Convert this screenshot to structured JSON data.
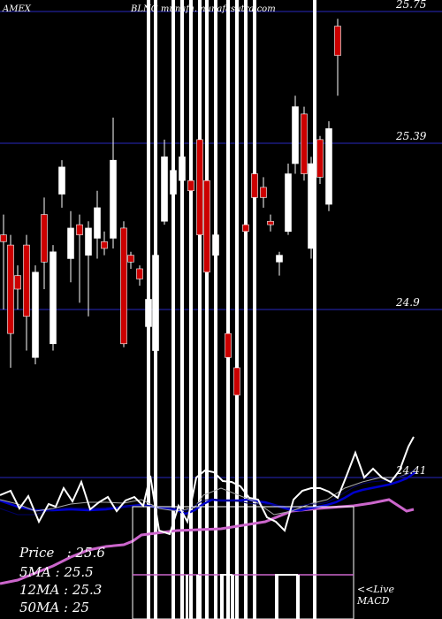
{
  "header": {
    "exchange": "AMEX",
    "symbol_site": "BLNG munafa.munafasutra.com"
  },
  "info": {
    "price": "Price   : 25.6",
    "ma5": "5MA : 25.5",
    "ma12": "12MA : 25.3",
    "ma50": "50MA : 25"
  },
  "live": {
    "line1": "<<Live",
    "line2": "MACD"
  },
  "colors": {
    "up": "#ffffff",
    "down": "#cc0000",
    "grid": "#1a1a80",
    "ma_short": "#0000cc",
    "ma_long": "#cc66cc",
    "macd": "#ffffff"
  },
  "chart_data": {
    "type": "candlestick",
    "y_ticks": [
      25.75,
      25.39,
      24.9,
      24.41
    ],
    "y_tick_labels": [
      "25.75",
      "25.39",
      "24.9",
      "24.41"
    ],
    "price_range": [
      24.41,
      25.75
    ],
    "candles": [
      {
        "x": 4,
        "o": 25.12,
        "c": 25.1,
        "h": 25.18,
        "l": 24.9
      },
      {
        "x": 12,
        "o": 25.09,
        "c": 24.83,
        "h": 25.12,
        "l": 24.73
      },
      {
        "x": 20,
        "o": 25.0,
        "c": 24.96,
        "h": 25.03,
        "l": 24.9
      },
      {
        "x": 30,
        "o": 25.09,
        "c": 24.88,
        "h": 25.12,
        "l": 24.78
      },
      {
        "x": 40,
        "o": 24.76,
        "c": 25.01,
        "h": 25.03,
        "l": 24.74
      },
      {
        "x": 50,
        "o": 25.18,
        "c": 25.04,
        "h": 25.23,
        "l": 24.96
      },
      {
        "x": 60,
        "o": 24.8,
        "c": 25.07,
        "h": 25.09,
        "l": 24.78
      },
      {
        "x": 70,
        "o": 25.24,
        "c": 25.32,
        "h": 25.34,
        "l": 25.2
      },
      {
        "x": 80,
        "o": 25.05,
        "c": 25.14,
        "h": 25.19,
        "l": 24.98
      },
      {
        "x": 90,
        "o": 25.15,
        "c": 25.12,
        "h": 25.18,
        "l": 24.92
      },
      {
        "x": 100,
        "o": 25.06,
        "c": 25.14,
        "h": 25.16,
        "l": 24.88
      },
      {
        "x": 110,
        "o": 25.11,
        "c": 25.2,
        "h": 25.25,
        "l": 25.05
      },
      {
        "x": 118,
        "o": 25.1,
        "c": 25.08,
        "h": 25.13,
        "l": 25.06
      },
      {
        "x": 128,
        "o": 25.11,
        "c": 25.34,
        "h": 25.46,
        "l": 25.08
      },
      {
        "x": 140,
        "o": 25.14,
        "c": 24.8,
        "h": 25.16,
        "l": 24.79
      },
      {
        "x": 148,
        "o": 25.06,
        "c": 25.04,
        "h": 25.07,
        "l": 25.02
      },
      {
        "x": 158,
        "o": 25.02,
        "c": 24.99,
        "h": 25.03,
        "l": 24.97
      },
      {
        "x": 168,
        "o": 24.85,
        "c": 24.93,
        "h": 24.98,
        "l": 24.8
      },
      {
        "x": 176,
        "o": 24.78,
        "c": 25.06,
        "h": 25.08,
        "l": 24.75
      },
      {
        "x": 186,
        "o": 25.16,
        "c": 25.35,
        "h": 25.4,
        "l": 25.15
      },
      {
        "x": 196,
        "o": 25.24,
        "c": 25.31,
        "h": 25.35,
        "l": 25.2
      },
      {
        "x": 206,
        "o": 25.28,
        "c": 25.35,
        "h": 25.38,
        "l": 25.1
      },
      {
        "x": 216,
        "o": 25.28,
        "c": 25.25,
        "h": 25.35,
        "l": 25.1
      },
      {
        "x": 226,
        "o": 25.4,
        "c": 25.12,
        "h": 25.42,
        "l": 25.0
      },
      {
        "x": 234,
        "o": 25.28,
        "c": 25.01,
        "h": 25.33,
        "l": 24.95
      },
      {
        "x": 244,
        "o": 25.06,
        "c": 25.12,
        "h": 25.15,
        "l": 25.0
      },
      {
        "x": 258,
        "o": 24.83,
        "c": 24.76,
        "h": 24.88,
        "l": 24.72
      },
      {
        "x": 268,
        "o": 24.73,
        "c": 24.65,
        "h": 24.74,
        "l": 24.62
      },
      {
        "x": 278,
        "o": 25.15,
        "c": 25.13,
        "h": 25.2,
        "l": 24.9
      },
      {
        "x": 288,
        "o": 25.3,
        "c": 25.23,
        "h": 25.34,
        "l": 25.1
      },
      {
        "x": 298,
        "o": 25.26,
        "c": 25.23,
        "h": 25.29,
        "l": 25.2
      },
      {
        "x": 306,
        "o": 25.16,
        "c": 25.15,
        "h": 25.18,
        "l": 25.13
      },
      {
        "x": 316,
        "o": 25.04,
        "c": 25.06,
        "h": 25.07,
        "l": 25.0
      },
      {
        "x": 326,
        "o": 25.13,
        "c": 25.3,
        "h": 25.33,
        "l": 25.12
      },
      {
        "x": 334,
        "o": 25.33,
        "c": 25.49,
        "h": 25.52,
        "l": 25.3
      },
      {
        "x": 344,
        "o": 25.47,
        "c": 25.3,
        "h": 25.49,
        "l": 25.28
      },
      {
        "x": 352,
        "o": 25.08,
        "c": 25.33,
        "h": 25.35,
        "l": 25.05
      },
      {
        "x": 362,
        "o": 25.4,
        "c": 25.29,
        "h": 25.41,
        "l": 25.27
      },
      {
        "x": 372,
        "o": 25.21,
        "c": 25.43,
        "h": 25.45,
        "l": 25.19
      },
      {
        "x": 382,
        "o": 25.71,
        "c": 25.63,
        "h": 25.73,
        "l": 25.52
      }
    ],
    "volume_spikes": [
      168,
      176,
      196,
      206,
      216,
      226,
      234,
      244,
      258,
      268,
      278,
      288,
      356
    ],
    "ma_fast": [
      [
        0,
        575
      ],
      [
        20,
        582
      ],
      [
        40,
        582
      ],
      [
        60,
        576
      ],
      [
        80,
        574
      ],
      [
        100,
        575
      ],
      [
        120,
        574
      ],
      [
        140,
        573
      ],
      [
        160,
        572
      ],
      [
        180,
        573
      ],
      [
        200,
        575
      ],
      [
        210,
        578
      ],
      [
        220,
        572
      ],
      [
        230,
        566
      ],
      [
        240,
        564
      ],
      [
        250,
        566
      ],
      [
        260,
        566
      ],
      [
        270,
        567
      ],
      [
        280,
        569
      ],
      [
        290,
        570
      ],
      [
        300,
        570
      ],
      [
        310,
        571
      ],
      [
        320,
        572
      ],
      [
        330,
        575
      ],
      [
        340,
        572
      ],
      [
        350,
        570
      ],
      [
        360,
        570
      ],
      [
        370,
        568
      ],
      [
        380,
        563
      ],
      [
        390,
        557
      ],
      [
        400,
        551
      ],
      [
        410,
        547
      ],
      [
        420,
        545
      ],
      [
        430,
        544
      ],
      [
        440,
        543
      ],
      [
        450,
        540
      ],
      [
        460,
        537
      ],
      [
        470,
        530
      ]
    ],
    "ma_slow": [
      [
        0,
        566
      ],
      [
        20,
        573
      ],
      [
        40,
        577
      ],
      [
        60,
        577
      ],
      [
        80,
        576
      ],
      [
        100,
        577
      ],
      [
        120,
        576
      ],
      [
        140,
        573
      ],
      [
        160,
        571
      ],
      [
        180,
        574
      ],
      [
        200,
        577
      ],
      [
        210,
        581
      ],
      [
        220,
        577
      ],
      [
        230,
        570
      ],
      [
        240,
        565
      ],
      [
        250,
        566
      ],
      [
        260,
        566
      ],
      [
        270,
        566
      ],
      [
        280,
        565
      ],
      [
        290,
        567
      ],
      [
        300,
        568
      ],
      [
        310,
        571
      ],
      [
        320,
        574
      ],
      [
        330,
        577
      ],
      [
        340,
        577
      ],
      [
        350,
        575
      ],
      [
        360,
        573
      ],
      [
        370,
        571
      ],
      [
        380,
        568
      ],
      [
        390,
        563
      ],
      [
        400,
        557
      ],
      [
        410,
        554
      ],
      [
        420,
        552
      ],
      [
        430,
        550
      ],
      [
        440,
        548
      ],
      [
        450,
        545
      ],
      [
        460,
        541
      ],
      [
        470,
        534
      ]
    ],
    "ma_long": [
      [
        0,
        660
      ],
      [
        20,
        656
      ],
      [
        40,
        648
      ],
      [
        60,
        640
      ],
      [
        80,
        630
      ],
      [
        100,
        622
      ],
      [
        120,
        618
      ],
      [
        140,
        616
      ],
      [
        150,
        612
      ],
      [
        160,
        605
      ],
      [
        200,
        600
      ],
      [
        250,
        598
      ],
      [
        300,
        590
      ],
      [
        330,
        578
      ],
      [
        360,
        575
      ],
      [
        400,
        572
      ],
      [
        420,
        569
      ],
      [
        440,
        565
      ],
      [
        460,
        578
      ],
      [
        468,
        576
      ]
    ],
    "macd_line": [
      [
        0,
        560
      ],
      [
        12,
        555
      ],
      [
        22,
        575
      ],
      [
        32,
        561
      ],
      [
        44,
        590
      ],
      [
        55,
        570
      ],
      [
        63,
        573
      ],
      [
        72,
        552
      ],
      [
        82,
        567
      ],
      [
        92,
        545
      ],
      [
        102,
        576
      ],
      [
        112,
        568
      ],
      [
        122,
        562
      ],
      [
        132,
        578
      ],
      [
        142,
        566
      ],
      [
        152,
        562
      ],
      [
        162,
        572
      ],
      [
        170,
        538
      ],
      [
        180,
        600
      ],
      [
        192,
        604
      ],
      [
        202,
        572
      ],
      [
        212,
        590
      ],
      [
        222,
        540
      ],
      [
        232,
        532
      ],
      [
        242,
        534
      ],
      [
        252,
        544
      ],
      [
        262,
        545
      ],
      [
        272,
        550
      ],
      [
        282,
        563
      ],
      [
        292,
        565
      ],
      [
        302,
        585
      ],
      [
        312,
        590
      ],
      [
        322,
        600
      ],
      [
        332,
        565
      ],
      [
        342,
        555
      ],
      [
        352,
        552
      ],
      [
        362,
        552
      ],
      [
        372,
        556
      ],
      [
        382,
        563
      ],
      [
        392,
        538
      ],
      [
        402,
        512
      ],
      [
        412,
        540
      ],
      [
        422,
        530
      ],
      [
        432,
        540
      ],
      [
        442,
        545
      ],
      [
        452,
        532
      ],
      [
        462,
        505
      ],
      [
        468,
        494
      ]
    ],
    "macd_signal": [
      [
        0,
        565
      ],
      [
        20,
        570
      ],
      [
        40,
        578
      ],
      [
        60,
        575
      ],
      [
        80,
        570
      ],
      [
        100,
        568
      ],
      [
        120,
        568
      ],
      [
        140,
        569
      ],
      [
        160,
        565
      ],
      [
        180,
        575
      ],
      [
        200,
        578
      ],
      [
        220,
        574
      ],
      [
        230,
        560
      ],
      [
        250,
        552
      ],
      [
        270,
        560
      ],
      [
        290,
        568
      ],
      [
        310,
        582
      ],
      [
        330,
        578
      ],
      [
        350,
        570
      ],
      [
        370,
        565
      ],
      [
        390,
        552
      ],
      [
        410,
        545
      ],
      [
        430,
        540
      ],
      [
        450,
        540
      ],
      [
        468,
        533
      ]
    ],
    "macd_hist_bars": [
      [
        160,
        576,
        660
      ],
      [
        178,
        576,
        700
      ],
      [
        190,
        576,
        700
      ],
      [
        202,
        576,
        700
      ],
      [
        214,
        576,
        700
      ],
      [
        226,
        576,
        700
      ],
      [
        240,
        576,
        700
      ],
      [
        252,
        576,
        700
      ],
      [
        262,
        576,
        700
      ],
      [
        272,
        576,
        700
      ],
      [
        284,
        576,
        700
      ],
      [
        302,
        576,
        700
      ],
      [
        316,
        576,
        700
      ],
      [
        330,
        576,
        700
      ],
      [
        344,
        576,
        700
      ],
      [
        356,
        576,
        700
      ],
      [
        370,
        576,
        700
      ],
      [
        388,
        576,
        700
      ]
    ]
  }
}
